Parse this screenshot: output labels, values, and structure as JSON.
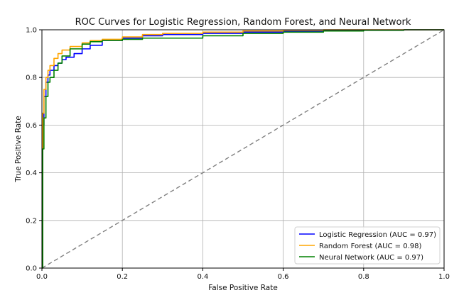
{
  "chart_data": {
    "type": "line",
    "title": "ROC Curves for Logistic Regression, Random Forest, and Neural Network",
    "xlabel": "False Positive Rate",
    "ylabel": "True Positive Rate",
    "xlim": [
      0,
      1
    ],
    "ylim": [
      0,
      1
    ],
    "x_ticks": [
      "0.0",
      "0.2",
      "0.4",
      "0.6",
      "0.8",
      "1.0"
    ],
    "y_ticks": [
      "0.0",
      "0.2",
      "0.4",
      "0.6",
      "0.8",
      "1.0"
    ],
    "grid": true,
    "legend_position": "lower-right",
    "series": [
      {
        "name": "Logistic Regression (AUC = 0.97)",
        "color": "#0000ff",
        "x": [
          0,
          0.002,
          0.005,
          0.01,
          0.015,
          0.02,
          0.03,
          0.04,
          0.05,
          0.06,
          0.08,
          0.1,
          0.12,
          0.15,
          0.2,
          0.25,
          0.3,
          0.4,
          0.5,
          0.6,
          0.7,
          0.8,
          0.9,
          1.0
        ],
        "y": [
          0,
          0.6,
          0.72,
          0.78,
          0.81,
          0.83,
          0.85,
          0.86,
          0.875,
          0.885,
          0.9,
          0.92,
          0.935,
          0.955,
          0.965,
          0.975,
          0.98,
          0.985,
          0.99,
          0.995,
          0.997,
          0.999,
          1.0,
          1.0
        ]
      },
      {
        "name": "Random Forest (AUC = 0.98)",
        "color": "#ffa500",
        "x": [
          0,
          0.002,
          0.005,
          0.01,
          0.015,
          0.02,
          0.03,
          0.04,
          0.05,
          0.07,
          0.1,
          0.12,
          0.15,
          0.2,
          0.25,
          0.3,
          0.4,
          0.5,
          0.6,
          0.7,
          0.8,
          0.9,
          1.0
        ],
        "y": [
          0,
          0.65,
          0.75,
          0.8,
          0.83,
          0.85,
          0.88,
          0.9,
          0.915,
          0.93,
          0.945,
          0.955,
          0.96,
          0.97,
          0.98,
          0.985,
          0.99,
          0.995,
          0.998,
          1.0,
          1.0,
          1.0,
          1.0
        ]
      },
      {
        "name": "Neural Network (AUC = 0.97)",
        "color": "#008000",
        "x": [
          0,
          0.002,
          0.005,
          0.01,
          0.015,
          0.02,
          0.03,
          0.04,
          0.05,
          0.07,
          0.1,
          0.12,
          0.15,
          0.2,
          0.25,
          0.3,
          0.4,
          0.5,
          0.6,
          0.7,
          0.8,
          0.9,
          1.0
        ],
        "y": [
          0,
          0.5,
          0.63,
          0.72,
          0.78,
          0.8,
          0.83,
          0.86,
          0.89,
          0.92,
          0.94,
          0.95,
          0.955,
          0.96,
          0.965,
          0.965,
          0.975,
          0.985,
          0.99,
          0.995,
          0.998,
          1.0,
          1.0
        ]
      }
    ],
    "reference_line": {
      "style": "dashed",
      "color": "#808080",
      "x": [
        0,
        1
      ],
      "y": [
        0,
        1
      ]
    }
  }
}
